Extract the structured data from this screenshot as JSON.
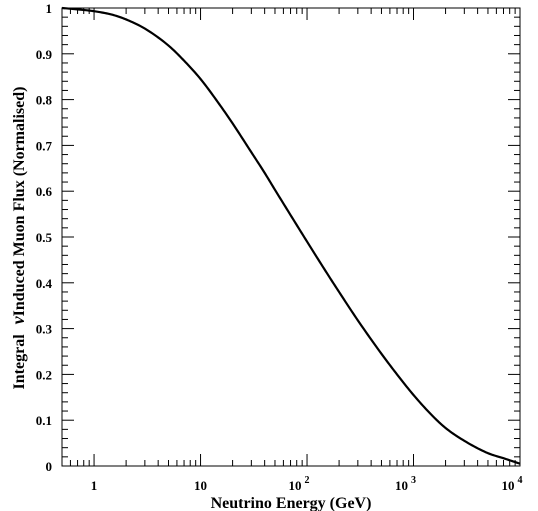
{
  "chart_data": {
    "type": "line",
    "title": "",
    "xlabel": "Neutrino Energy (GeV)",
    "ylabel": {
      "prefix": "Integral",
      "symbol": "ν",
      "suffix": "Induced Muon Flux (Normalised)"
    },
    "xscale": "log",
    "xlim": [
      0.5,
      10000
    ],
    "ylim": [
      0,
      1
    ],
    "grid": false,
    "x_ticks": [
      {
        "value": 1,
        "base": "1",
        "exp": ""
      },
      {
        "value": 10,
        "base": "10",
        "exp": ""
      },
      {
        "value": 100,
        "base": "10",
        "exp": "2"
      },
      {
        "value": 1000,
        "base": "10",
        "exp": "3"
      },
      {
        "value": 10000,
        "base": "10",
        "exp": "4"
      }
    ],
    "y_ticks": [
      "0",
      "0.1",
      "0.2",
      "0.3",
      "0.4",
      "0.5",
      "0.6",
      "0.7",
      "0.8",
      "0.9",
      "1"
    ],
    "series": [
      {
        "color": "#000000",
        "x": [
          0.5,
          0.7,
          1,
          1.5,
          2,
          3,
          5,
          7,
          10,
          15,
          20,
          30,
          40,
          50,
          70,
          100,
          150,
          200,
          300,
          500,
          700,
          1000,
          1500,
          2000,
          3000,
          5000,
          7000,
          10000
        ],
        "y": [
          1.0,
          0.997,
          0.993,
          0.985,
          0.975,
          0.955,
          0.918,
          0.885,
          0.845,
          0.79,
          0.748,
          0.685,
          0.64,
          0.603,
          0.548,
          0.49,
          0.425,
          0.38,
          0.318,
          0.245,
          0.2,
          0.155,
          0.11,
          0.083,
          0.055,
          0.028,
          0.017,
          0.005
        ]
      }
    ]
  }
}
